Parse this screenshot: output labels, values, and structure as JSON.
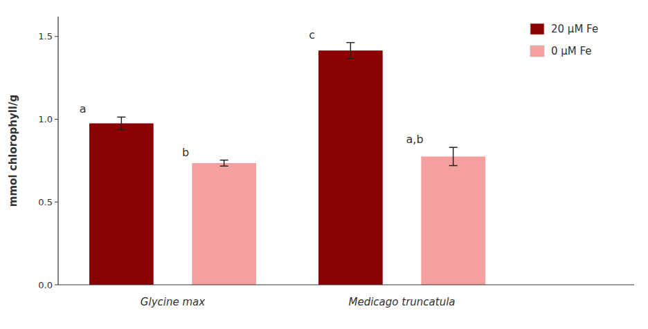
{
  "chart_data": {
    "type": "bar",
    "categories": [
      "Glycine max",
      "Medicago truncatula"
    ],
    "series": [
      {
        "name": "20 μM Fe",
        "color": "#8B0000",
        "values": [
          0.975,
          1.415
        ],
        "errors": [
          0.038,
          0.048
        ],
        "significance_labels": [
          "a",
          "c"
        ]
      },
      {
        "name": "0 μM Fe",
        "color": "#F4A0A0",
        "values": [
          0.735,
          0.775
        ],
        "errors": [
          0.018,
          0.055
        ],
        "significance_labels": [
          "b",
          "a,b"
        ]
      }
    ],
    "ylabel": "mmol chlorophyll/g",
    "ylim": [
      0,
      1.62
    ],
    "yticks": [
      {
        "value": 0.0,
        "label": "0.0"
      },
      0.5,
      {
        "value": 1.0,
        "label": "1.0"
      },
      1.5
    ],
    "grid": false,
    "legend": "upper right"
  }
}
